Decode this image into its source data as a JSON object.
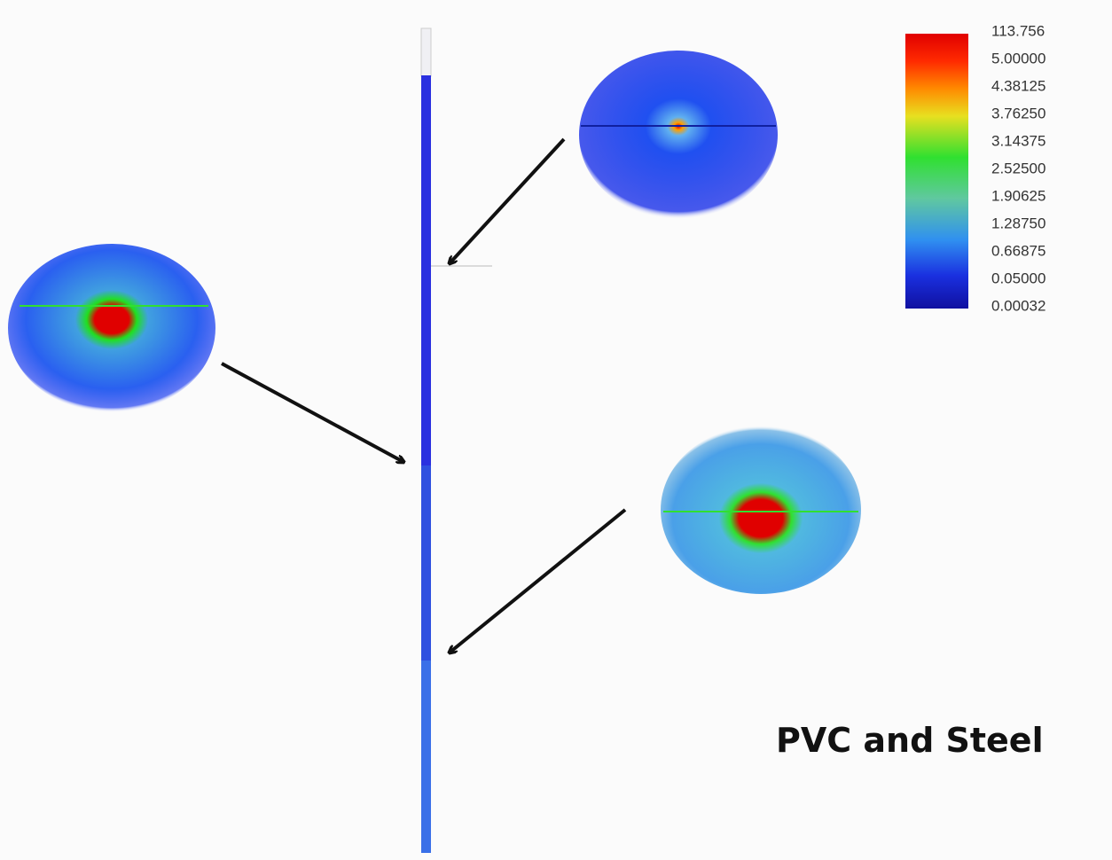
{
  "legend": {
    "labels": [
      "113.756",
      "5.00000",
      "4.38125",
      "3.76250",
      "3.14375",
      "2.52500",
      "1.90625",
      "1.28750",
      "0.66875",
      "0.05000",
      "0.00032"
    ]
  },
  "caption": "PVC and Steel"
}
